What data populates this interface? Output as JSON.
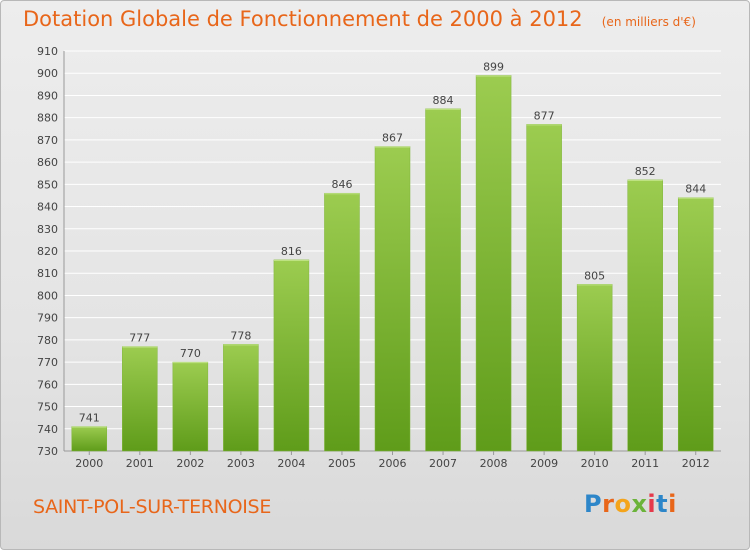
{
  "title": "Dotation Globale de Fonctionnement de 2000 à 2012",
  "unit_note": "(en milliers d'€)",
  "commune": "SAINT-POL-SUR-TERNOISE",
  "logo": "Proxiti",
  "colors": {
    "accent": "#e8661a",
    "bar_top": "#9ccc50",
    "bar_bottom": "#5f9c1a"
  },
  "chart_data": {
    "type": "bar",
    "categories": [
      "2000",
      "2001",
      "2002",
      "2003",
      "2004",
      "2005",
      "2006",
      "2007",
      "2008",
      "2009",
      "2010",
      "2011",
      "2012"
    ],
    "values": [
      741,
      777,
      770,
      778,
      816,
      846,
      867,
      884,
      899,
      877,
      805,
      852,
      844
    ],
    "ylim": [
      730,
      910
    ],
    "yticks": [
      730,
      740,
      750,
      760,
      770,
      780,
      790,
      800,
      810,
      820,
      830,
      840,
      850,
      860,
      870,
      880,
      890,
      900,
      910
    ],
    "grid": true,
    "data_labels": true
  }
}
